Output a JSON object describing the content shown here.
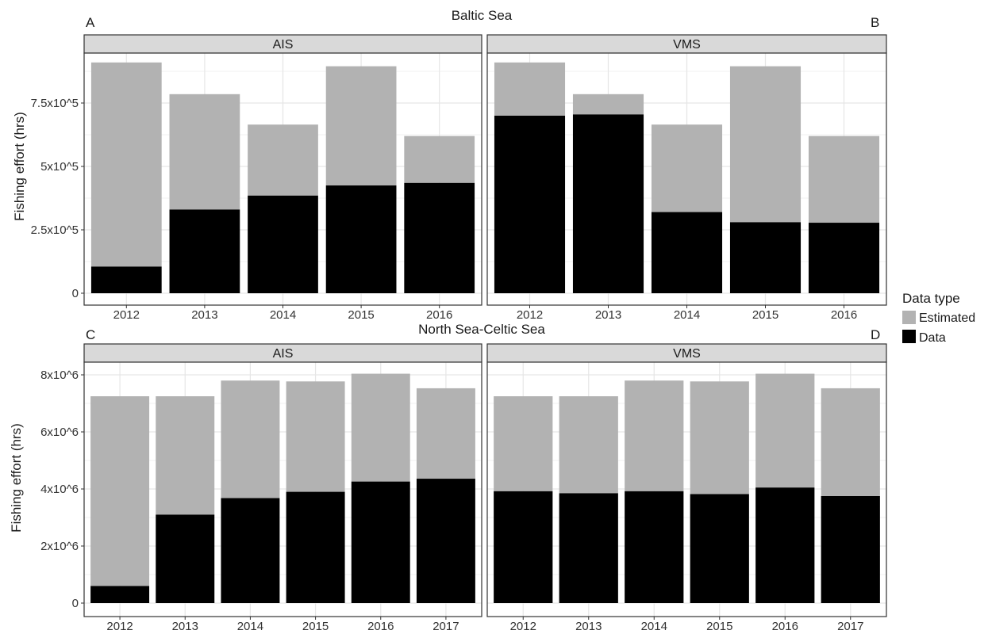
{
  "colors": {
    "estimated": "#b2b2b2",
    "data": "#000000",
    "grid_major": "#e6e6e6",
    "grid_minor": "#f2f2f2",
    "strip_fill": "#d9d9d9",
    "panel_border": "#333333"
  },
  "legend": {
    "title": "Data type",
    "items": [
      {
        "label": "Estimated",
        "color_key": "estimated"
      },
      {
        "label": "Data",
        "color_key": "data"
      }
    ]
  },
  "chart_data": [
    {
      "type": "bar",
      "stacked": true,
      "region_title": "Baltic Sea",
      "ylabel": "Fishing effort (hrs)",
      "ylim": [
        0,
        960000
      ],
      "yticks": [
        0,
        250000,
        500000,
        750000
      ],
      "ytick_labels": [
        "0",
        "2.5x10^5",
        "5x10^5",
        "7.5x10^5"
      ],
      "grid": true,
      "legend_placement": "right",
      "panels": [
        {
          "letter": "A",
          "strip": "AIS",
          "categories": [
            "2012",
            "2013",
            "2014",
            "2015",
            "2016"
          ],
          "series": [
            {
              "name": "Data",
              "values": [
                105000,
                330000,
                385000,
                425000,
                435000
              ]
            },
            {
              "name": "Estimated",
              "values": [
                805000,
                455000,
                280000,
                470000,
                185000
              ]
            }
          ],
          "totals": [
            910000,
            785000,
            665000,
            895000,
            620000
          ]
        },
        {
          "letter": "B",
          "strip": "VMS",
          "categories": [
            "2012",
            "2013",
            "2014",
            "2015",
            "2016"
          ],
          "series": [
            {
              "name": "Data",
              "values": [
                700000,
                705000,
                320000,
                280000,
                278000
              ]
            },
            {
              "name": "Estimated",
              "values": [
                210000,
                80000,
                345000,
                615000,
                342000
              ]
            }
          ],
          "totals": [
            910000,
            785000,
            665000,
            895000,
            620000
          ]
        }
      ]
    },
    {
      "type": "bar",
      "stacked": true,
      "region_title": "North Sea-Celtic Sea",
      "ylabel": "Fishing effort (hrs)",
      "ylim": [
        0,
        8400000
      ],
      "yticks": [
        0,
        2000000,
        4000000,
        6000000,
        8000000
      ],
      "ytick_labels": [
        "0",
        "2x10^6",
        "4x10^6",
        "6x10^6",
        "8x10^6"
      ],
      "grid": true,
      "legend_placement": "right",
      "panels": [
        {
          "letter": "C",
          "strip": "AIS",
          "categories": [
            "2012",
            "2013",
            "2014",
            "2015",
            "2016",
            "2017"
          ],
          "series": [
            {
              "name": "Data",
              "values": [
                600000,
                3100000,
                3680000,
                3900000,
                4260000,
                4360000
              ]
            },
            {
              "name": "Estimated",
              "values": [
                6650000,
                4150000,
                4120000,
                3870000,
                3780000,
                3170000
              ]
            }
          ],
          "totals": [
            7250000,
            7250000,
            7800000,
            7770000,
            8040000,
            7530000
          ]
        },
        {
          "letter": "D",
          "strip": "VMS",
          "categories": [
            "2012",
            "2013",
            "2014",
            "2015",
            "2016",
            "2017"
          ],
          "series": [
            {
              "name": "Data",
              "values": [
                3920000,
                3850000,
                3920000,
                3820000,
                4050000,
                3750000
              ]
            },
            {
              "name": "Estimated",
              "values": [
                3330000,
                3400000,
                3880000,
                3950000,
                3990000,
                3780000
              ]
            }
          ],
          "totals": [
            7250000,
            7250000,
            7800000,
            7770000,
            8040000,
            7530000
          ]
        }
      ]
    }
  ]
}
